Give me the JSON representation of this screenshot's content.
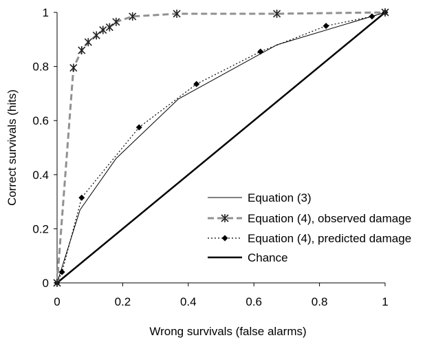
{
  "chart_data": {
    "type": "line",
    "title": "",
    "xlabel": "Wrong survivals (false alarms)",
    "ylabel": "Correct survivals (hits)",
    "xlim": [
      0,
      1
    ],
    "ylim": [
      0,
      1
    ],
    "x_ticks": [
      0,
      0.2,
      0.4,
      0.6,
      0.8,
      1
    ],
    "y_ticks": [
      0,
      0.2,
      0.4,
      0.6,
      0.8,
      1
    ],
    "x_tick_labels": [
      "0",
      "0.2",
      "0.4",
      "0.6",
      "0.8",
      "1"
    ],
    "y_tick_labels": [
      "0",
      "0.2",
      "0.4",
      "0.6",
      "0.8",
      "1"
    ],
    "grid": false,
    "legend_position": "bottom-right",
    "series": [
      {
        "name": "Equation (3)",
        "style": "solid-thin",
        "color": "#000000",
        "marker": "none",
        "x": [
          0,
          0.07,
          0.18,
          0.37,
          0.67,
          1
        ],
        "y": [
          0,
          0.27,
          0.46,
          0.68,
          0.88,
          1
        ]
      },
      {
        "name": "Equation (4), observed damage",
        "style": "dashed",
        "color": "#909090",
        "marker": "asterisk",
        "x": [
          0,
          0.05,
          0.075,
          0.095,
          0.12,
          0.14,
          0.16,
          0.18,
          0.23,
          0.365,
          0.67,
          1
        ],
        "y": [
          0,
          0.795,
          0.86,
          0.89,
          0.915,
          0.935,
          0.945,
          0.965,
          0.985,
          0.995,
          0.995,
          1
        ]
      },
      {
        "name": "Equation (4), predicted damage",
        "style": "dotted",
        "color": "#000000",
        "marker": "diamond",
        "x": [
          0,
          0.015,
          0.075,
          0.25,
          0.425,
          0.62,
          0.82,
          0.96,
          1
        ],
        "y": [
          0,
          0.04,
          0.315,
          0.575,
          0.735,
          0.855,
          0.95,
          0.985,
          1
        ]
      },
      {
        "name": "Chance",
        "style": "solid-thick",
        "color": "#000000",
        "marker": "none",
        "x": [
          0,
          1
        ],
        "y": [
          0,
          1
        ]
      }
    ]
  }
}
